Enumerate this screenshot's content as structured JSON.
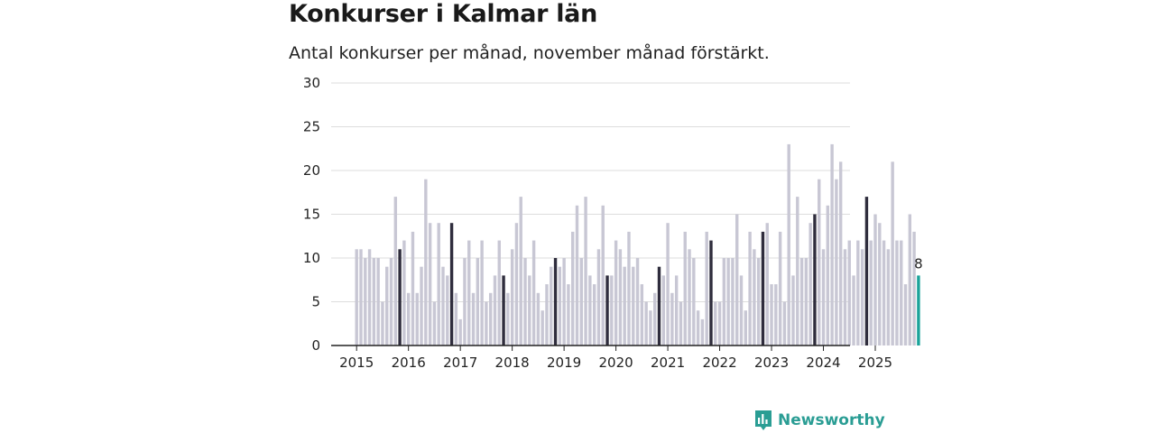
{
  "title": "Konkurser i Kalmar län",
  "subtitle": "Antal konkurser per månad, november månad förstärkt.",
  "brand": "Newsworthy",
  "colors": {
    "regular": "#c8c7d4",
    "highlight": "#2f2d3d",
    "latest": "#1aa39a",
    "grid": "#dddddd",
    "axis": "#222222"
  },
  "chart_data": {
    "type": "bar",
    "title": "Konkurser i Kalmar län",
    "subtitle": "Antal konkurser per månad, november månad förstärkt.",
    "xlabel": "",
    "ylabel": "",
    "ylim": [
      0,
      30
    ],
    "yticks": [
      0,
      5,
      10,
      15,
      20,
      25,
      30
    ],
    "x_tick_labels": [
      "2015",
      "2016",
      "2017",
      "2018",
      "2019",
      "2020",
      "2021",
      "2022",
      "2023",
      "2024",
      "2025"
    ],
    "start": "2015-01",
    "highlight_month": "november",
    "series": [
      {
        "name": "Konkurser",
        "values": [
          11,
          11,
          10,
          11,
          10,
          10,
          5,
          9,
          10,
          17,
          11,
          12,
          6,
          13,
          6,
          9,
          19,
          14,
          5,
          14,
          9,
          8,
          14,
          6,
          3,
          10,
          12,
          6,
          10,
          12,
          5,
          6,
          8,
          12,
          8,
          6,
          11,
          14,
          17,
          10,
          8,
          12,
          6,
          4,
          7,
          9,
          10,
          9,
          10,
          7,
          13,
          16,
          10,
          17,
          8,
          7,
          11,
          16,
          8,
          8,
          12,
          11,
          9,
          13,
          9,
          10,
          7,
          5,
          4,
          6,
          9,
          8,
          14,
          6,
          8,
          5,
          13,
          11,
          10,
          4,
          3,
          13,
          12,
          5,
          5,
          10,
          10,
          10,
          15,
          8,
          4,
          13,
          11,
          10,
          13,
          14,
          7,
          7,
          13,
          5,
          23,
          8,
          17,
          10,
          10,
          14,
          15,
          19,
          11,
          16,
          23,
          19,
          21,
          11,
          12,
          8,
          12,
          11,
          17,
          12,
          15,
          14,
          12,
          11,
          21,
          12,
          12,
          7,
          15,
          13,
          8
        ]
      }
    ],
    "annotations": [
      {
        "label": "8",
        "target": "last bar"
      }
    ]
  }
}
